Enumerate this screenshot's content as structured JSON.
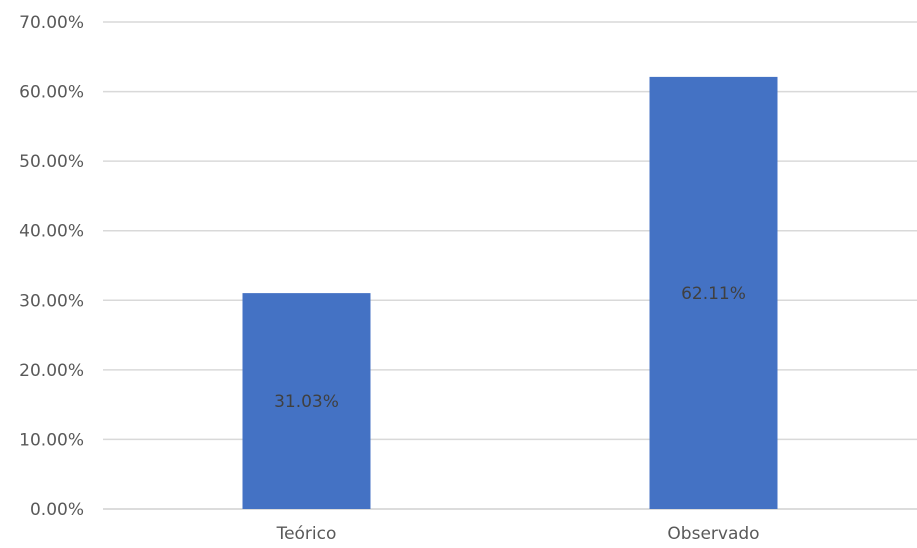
{
  "chart_data": {
    "type": "bar",
    "categories": [
      "Teórico",
      "Observado"
    ],
    "series": [
      {
        "values": [
          0.3103,
          0.6211
        ],
        "color": "#4472c4"
      }
    ],
    "data_labels": [
      "31.03%",
      "62.11%"
    ],
    "ylim": [
      0,
      0.7
    ],
    "y_ticks": [
      {
        "value": 0.0,
        "label": "0.00%"
      },
      {
        "value": 0.1,
        "label": "10.00%"
      },
      {
        "value": 0.2,
        "label": "20.00%"
      },
      {
        "value": 0.3,
        "label": "30.00%"
      },
      {
        "value": 0.4,
        "label": "40.00%"
      },
      {
        "value": 0.5,
        "label": "50.00%"
      },
      {
        "value": 0.6,
        "label": "60.00%"
      },
      {
        "value": 0.7,
        "label": "70.00%"
      }
    ],
    "grid": true,
    "legend": "none",
    "title": "",
    "xlabel": "",
    "ylabel": "",
    "colors": {
      "bar": "#4472c4",
      "gridline": "#d9d9d9",
      "tick_text": "#595959",
      "data_label_text": "#404040"
    }
  }
}
